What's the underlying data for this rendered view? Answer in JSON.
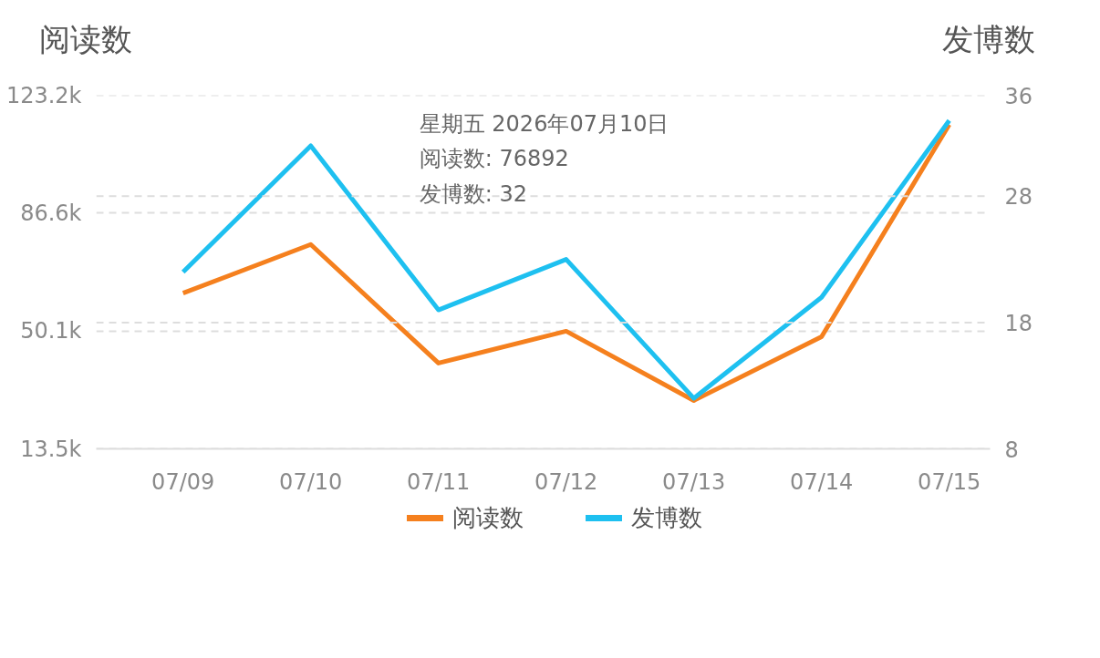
{
  "chart_data": {
    "type": "line",
    "ylabel": "阅读数",
    "y2label": "发博数",
    "categories": [
      "07/09",
      "07/10",
      "07/11",
      "07/12",
      "07/13",
      "07/14",
      "07/15"
    ],
    "series": [
      {
        "name": "阅读数",
        "color": "#f5801e",
        "values": [
          61800,
          76892,
          40100,
          50000,
          28500,
          48300,
          114100
        ]
      },
      {
        "name": "发博数",
        "color": "#1ec0f0",
        "axis": "y2",
        "values": [
          22,
          32,
          19,
          23,
          12,
          20,
          34
        ]
      }
    ],
    "ylim": [
      13500,
      123200
    ],
    "yticks": [
      {
        "value": 13500,
        "label": "13.5k"
      },
      {
        "value": 50100,
        "label": "50.1k"
      },
      {
        "value": 86600,
        "label": "86.6k"
      },
      {
        "value": 123200,
        "label": "123.2k"
      }
    ],
    "y2lim": [
      8,
      36
    ],
    "y2ticks": [
      8,
      18,
      28,
      36
    ],
    "grid": "y",
    "legend": "bottom",
    "annotations": [
      "星期五 2026年07月10日",
      "阅读数: 76892",
      "发博数: 32"
    ]
  }
}
